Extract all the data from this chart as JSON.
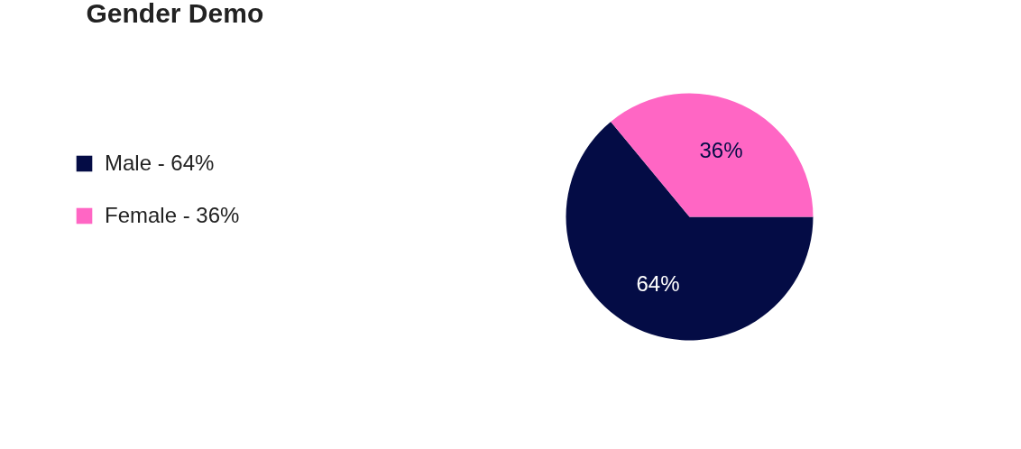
{
  "chart_data": {
    "type": "pie",
    "title": "Gender Demo",
    "categories": [
      "Male - 64%",
      "Female - 36%"
    ],
    "values": [
      64,
      36
    ],
    "colors": [
      "#040c45",
      "#ff66c4"
    ],
    "value_labels": [
      "64%",
      "36%"
    ],
    "legend": "left"
  }
}
